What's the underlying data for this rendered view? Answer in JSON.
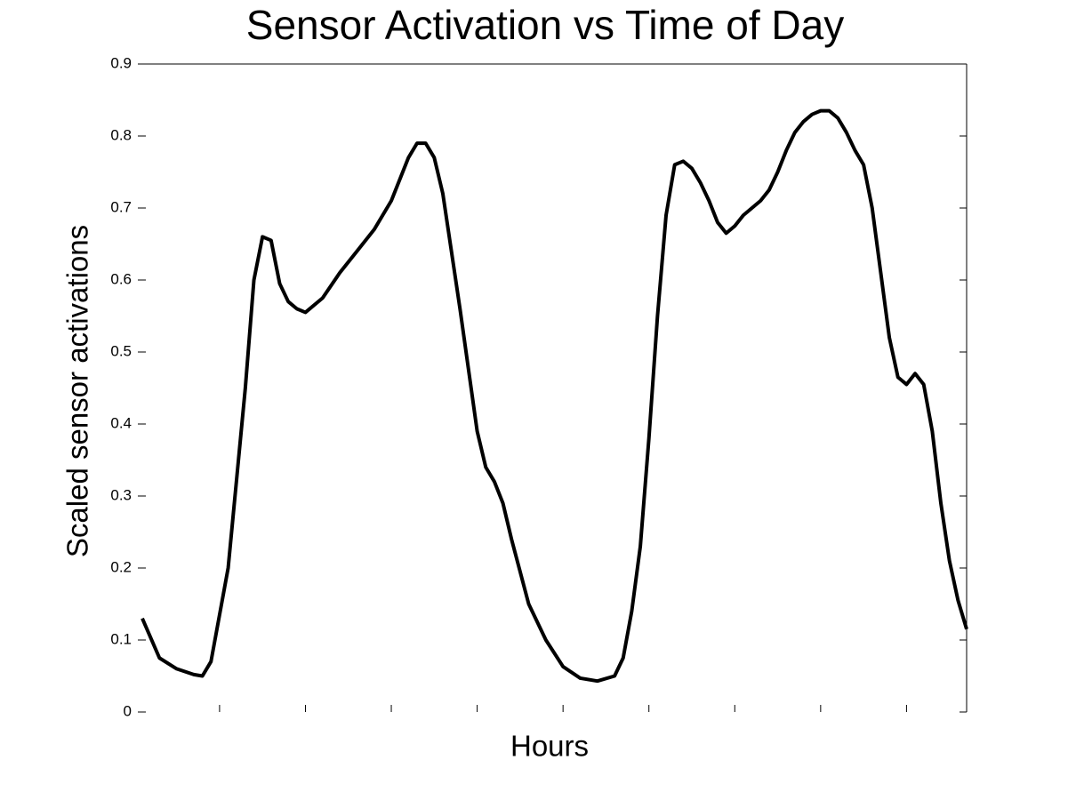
{
  "chart_data": {
    "type": "line",
    "title": "Sensor Activation vs Time of Day",
    "x_label": "Hours",
    "y_label": "Scaled sensor activations",
    "xlim": [
      1,
      97
    ],
    "xticks": [
      10,
      20,
      30,
      40,
      50,
      60,
      70,
      80,
      90
    ],
    "ylim": [
      0,
      0.9
    ],
    "yticks": [
      0,
      0.1,
      0.2,
      0.3,
      0.4,
      0.5,
      0.6,
      0.7,
      0.8,
      0.9
    ],
    "series": [
      {
        "color": "#000000",
        "x": [
          1,
          3,
          5,
          7,
          8,
          9,
          11,
          13,
          14,
          15,
          16,
          17,
          18,
          19,
          20,
          22,
          24,
          26,
          28,
          30,
          32,
          33,
          34,
          35,
          36,
          38,
          40,
          41,
          42,
          43,
          44,
          46,
          48,
          50,
          52,
          54,
          56,
          57,
          58,
          59,
          60,
          61,
          62,
          63,
          64,
          65,
          66,
          67,
          68,
          69,
          70,
          71,
          72,
          73,
          74,
          75,
          76,
          77,
          78,
          79,
          80,
          81,
          82,
          83,
          84,
          85,
          86,
          87,
          88,
          89,
          90,
          91,
          92,
          93,
          94,
          95,
          96,
          97
        ],
        "values": [
          0.13,
          0.075,
          0.06,
          0.052,
          0.05,
          0.07,
          0.2,
          0.45,
          0.6,
          0.66,
          0.655,
          0.595,
          0.57,
          0.56,
          0.555,
          0.575,
          0.61,
          0.64,
          0.67,
          0.71,
          0.77,
          0.79,
          0.79,
          0.77,
          0.72,
          0.56,
          0.39,
          0.34,
          0.32,
          0.29,
          0.24,
          0.15,
          0.1,
          0.063,
          0.047,
          0.043,
          0.05,
          0.075,
          0.14,
          0.23,
          0.38,
          0.55,
          0.69,
          0.76,
          0.765,
          0.755,
          0.735,
          0.71,
          0.68,
          0.665,
          0.675,
          0.69,
          0.7,
          0.71,
          0.725,
          0.75,
          0.78,
          0.805,
          0.82,
          0.83,
          0.835,
          0.835,
          0.825,
          0.805,
          0.78,
          0.76,
          0.7,
          0.61,
          0.52,
          0.465,
          0.455,
          0.47,
          0.455,
          0.39,
          0.29,
          0.21,
          0.155,
          0.115
        ]
      }
    ]
  }
}
